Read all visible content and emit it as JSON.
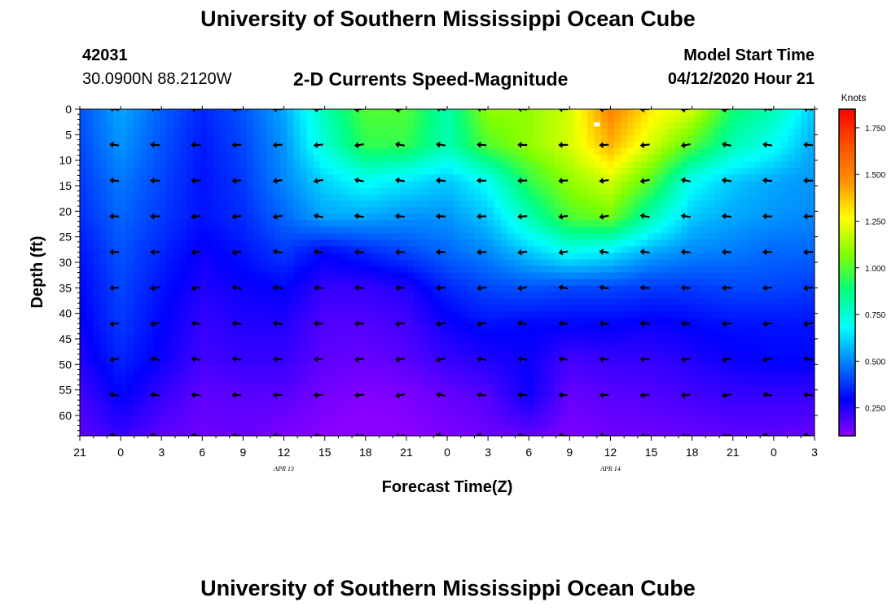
{
  "header": {
    "title": "University of Southern Mississippi Ocean Cube",
    "station_id": "42031",
    "coords": "30.0900N 88.2120W",
    "subtitle": "2-D Currents Speed-Magnitude",
    "model_start_label": "Model Start Time",
    "model_start_value": "04/12/2020 Hour 21"
  },
  "footer": {
    "title": "University of Southern Mississippi Ocean Cube"
  },
  "chart_data": {
    "type": "heatmap",
    "title": "2-D Currents Speed-Magnitude",
    "xlabel": "Forecast Time(Z)",
    "ylabel": "Depth (ft)",
    "x_ticks": [
      "21",
      "0",
      "3",
      "6",
      "9",
      "12",
      "15",
      "18",
      "21",
      "0",
      "3",
      "6",
      "9",
      "12",
      "15",
      "18",
      "21",
      "0",
      "3"
    ],
    "x_hours": [
      0,
      3,
      6,
      9,
      12,
      15,
      18,
      21,
      24,
      27,
      30,
      33,
      36,
      39,
      42,
      45,
      48,
      51,
      54
    ],
    "x_range_hours": [
      0,
      54
    ],
    "date_labels": [
      {
        "text": "APR 13",
        "hour": 15
      },
      {
        "text": "APR 14",
        "hour": 39
      }
    ],
    "y_ticks": [
      0,
      5,
      10,
      15,
      20,
      25,
      30,
      35,
      40,
      45,
      50,
      55,
      60
    ],
    "y_range": [
      0,
      64
    ],
    "y_inverted": true,
    "colorbar": {
      "title": "Knots",
      "ticks": [
        "0.250",
        "0.500",
        "0.750",
        "1.000",
        "1.250",
        "1.500",
        "1.750"
      ],
      "tick_values": [
        0.25,
        0.5,
        0.75,
        1.0,
        1.25,
        1.5,
        1.75
      ],
      "range": [
        0.1,
        1.85
      ],
      "colors": [
        "#8a00ff",
        "#0000ff",
        "#0080ff",
        "#00ffff",
        "#00ff80",
        "#80ff00",
        "#ffff00",
        "#ff9000",
        "#ff5000",
        "#ff0000"
      ]
    },
    "speed_grid": {
      "hours": [
        0,
        3,
        6,
        9,
        12,
        15,
        18,
        21,
        24,
        27,
        30,
        33,
        36,
        39,
        42,
        45,
        48,
        51,
        54
      ],
      "depths": [
        0,
        7,
        14,
        21,
        28,
        35,
        42,
        49,
        56,
        64
      ],
      "values": [
        [
          0.42,
          0.55,
          0.44,
          0.35,
          0.42,
          0.55,
          0.8,
          1.0,
          1.0,
          0.8,
          1.1,
          1.1,
          1.2,
          1.5,
          1.3,
          1.2,
          0.9,
          0.8,
          0.6
        ],
        [
          0.4,
          0.52,
          0.42,
          0.33,
          0.4,
          0.52,
          0.75,
          0.95,
          0.95,
          0.8,
          1.0,
          1.1,
          1.2,
          1.4,
          1.2,
          1.0,
          0.8,
          0.7,
          0.55
        ],
        [
          0.38,
          0.48,
          0.4,
          0.32,
          0.38,
          0.5,
          0.62,
          0.7,
          0.65,
          0.6,
          0.7,
          0.95,
          1.1,
          1.2,
          1.0,
          0.7,
          0.6,
          0.55,
          0.52
        ],
        [
          0.36,
          0.45,
          0.38,
          0.32,
          0.36,
          0.45,
          0.55,
          0.55,
          0.52,
          0.52,
          0.6,
          0.8,
          1.0,
          1.05,
          0.8,
          0.6,
          0.55,
          0.52,
          0.5
        ],
        [
          0.32,
          0.42,
          0.35,
          0.28,
          0.32,
          0.38,
          0.3,
          0.35,
          0.4,
          0.45,
          0.5,
          0.6,
          0.7,
          0.65,
          0.55,
          0.5,
          0.48,
          0.45,
          0.45
        ],
        [
          0.3,
          0.4,
          0.32,
          0.25,
          0.28,
          0.3,
          0.22,
          0.22,
          0.25,
          0.35,
          0.4,
          0.42,
          0.4,
          0.4,
          0.38,
          0.38,
          0.4,
          0.4,
          0.38
        ],
        [
          0.28,
          0.38,
          0.3,
          0.22,
          0.25,
          0.25,
          0.18,
          0.18,
          0.2,
          0.28,
          0.32,
          0.3,
          0.3,
          0.3,
          0.28,
          0.3,
          0.32,
          0.32,
          0.32
        ],
        [
          0.25,
          0.35,
          0.28,
          0.2,
          0.22,
          0.22,
          0.16,
          0.15,
          0.17,
          0.22,
          0.25,
          0.28,
          0.2,
          0.22,
          0.22,
          0.25,
          0.28,
          0.3,
          0.3
        ],
        [
          0.2,
          0.3,
          0.22,
          0.16,
          0.17,
          0.17,
          0.13,
          0.11,
          0.12,
          0.15,
          0.18,
          0.28,
          0.15,
          0.17,
          0.18,
          0.2,
          0.22,
          0.22,
          0.22
        ],
        [
          0.16,
          0.22,
          0.16,
          0.14,
          0.15,
          0.12,
          0.1,
          0.08,
          0.1,
          0.12,
          0.14,
          0.16,
          0.12,
          0.14,
          0.14,
          0.15,
          0.16,
          0.16,
          0.15
        ]
      ]
    },
    "vectors": {
      "hours": [
        3,
        6,
        9,
        12,
        15,
        18,
        21,
        24,
        27,
        30,
        33,
        36,
        39,
        42,
        45,
        48,
        51,
        54
      ],
      "depths": [
        0,
        7,
        14,
        21,
        28,
        35,
        42,
        49,
        56,
        64
      ]
    }
  }
}
